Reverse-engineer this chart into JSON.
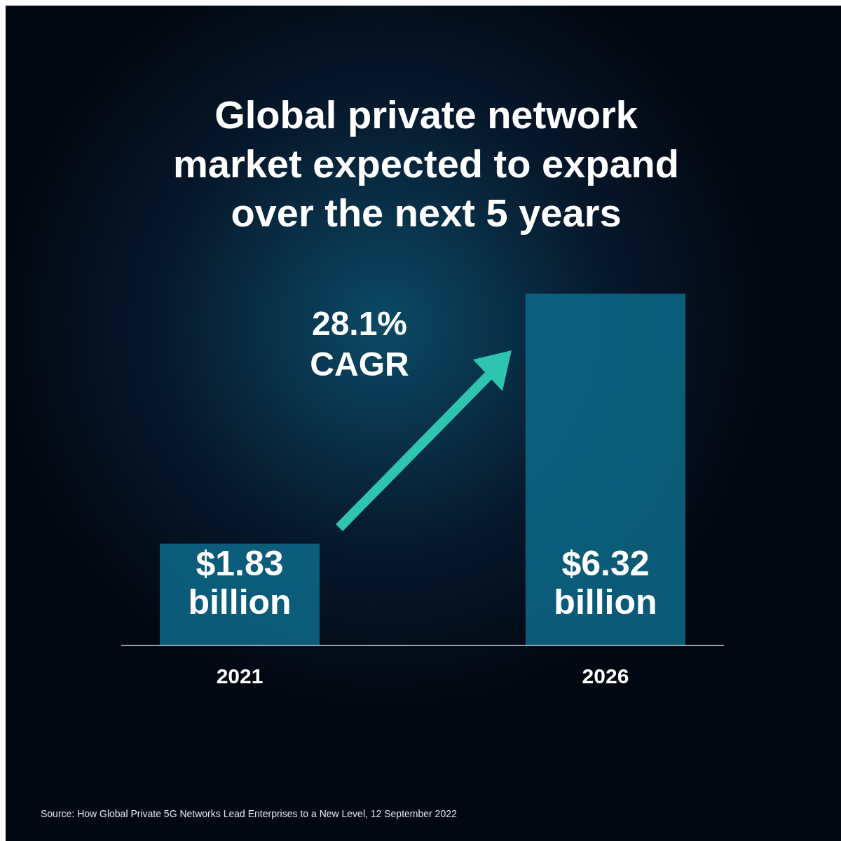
{
  "chart_data": {
    "type": "bar",
    "title": "Global private network market expected to expand over the next 5 years",
    "categories": [
      "2021",
      "2026"
    ],
    "values": [
      1.83,
      6.32
    ],
    "value_labels": [
      "$1.83 billion",
      "$6.32 billion"
    ],
    "color": "#0d6a8a",
    "annotations": [
      "28.1% CAGR",
      "Source: How Global Private 5G Networks Lead Enterprises to a New Level, 12 September 2022"
    ]
  }
}
